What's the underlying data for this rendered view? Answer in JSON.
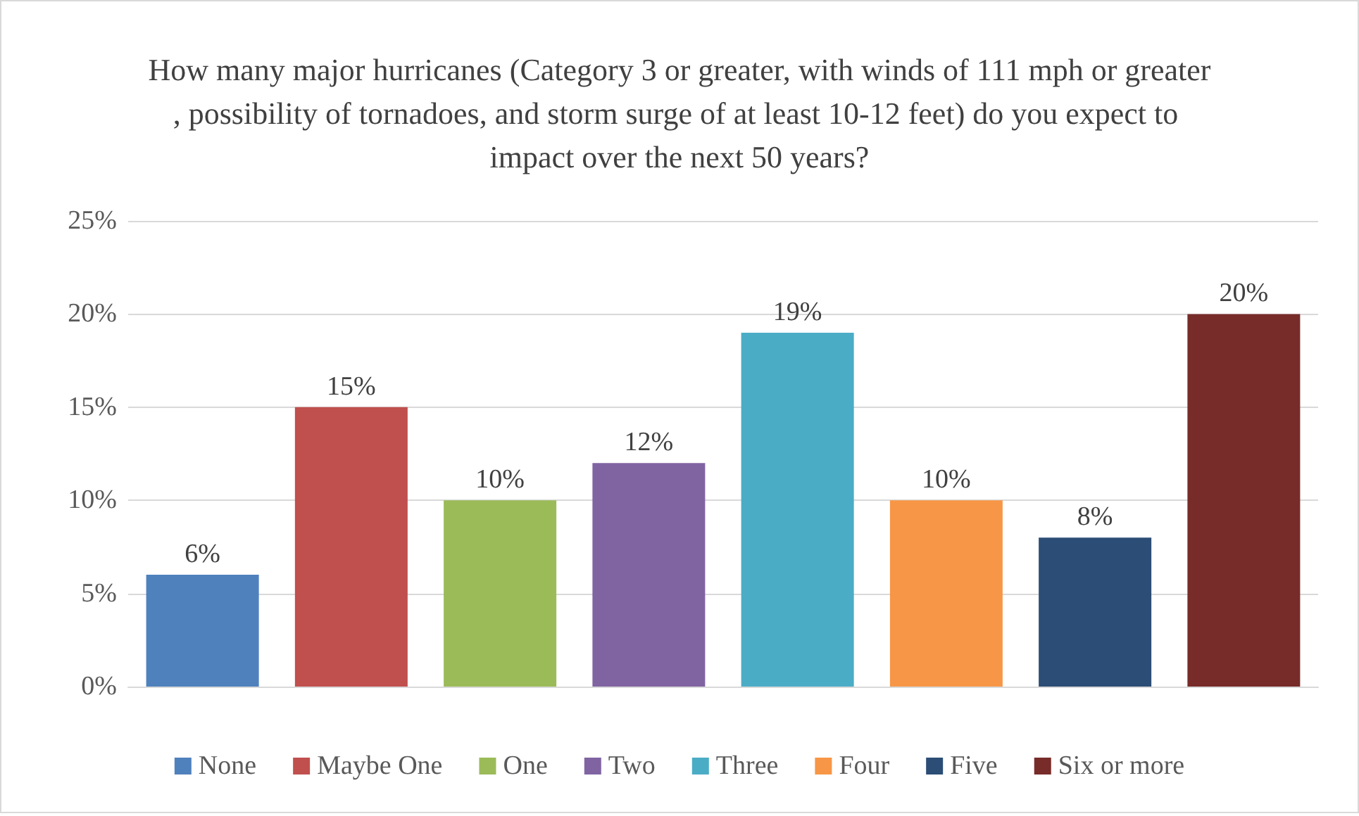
{
  "chart_data": {
    "type": "bar",
    "title": "How many major hurricanes (Category 3 or greater, with winds of 111 mph or greater, possibility of tornadoes, and storm surge of at least 10-12 feet) do you expect to impact over the next 50 years?",
    "categories": [
      null,
      null,
      null,
      null,
      null,
      null,
      null,
      null
    ],
    "series": [
      {
        "name": "None",
        "color": "#4f81bd",
        "values": [
          6,
          null,
          null,
          null,
          null,
          null,
          null,
          null
        ],
        "value_labels": [
          "6%",
          null,
          null,
          null,
          null,
          null,
          null,
          null
        ]
      },
      {
        "name": "Maybe One",
        "color": "#c0504d",
        "values": [
          null,
          15,
          null,
          null,
          null,
          null,
          null,
          null
        ],
        "value_labels": [
          null,
          "15%",
          null,
          null,
          null,
          null,
          null,
          null
        ]
      },
      {
        "name": "One",
        "color": "#9bbb59",
        "values": [
          null,
          null,
          10,
          null,
          null,
          null,
          null,
          null
        ],
        "value_labels": [
          null,
          null,
          "10%",
          null,
          null,
          null,
          null,
          null
        ]
      },
      {
        "name": "Two",
        "color": "#8064a2",
        "values": [
          null,
          null,
          null,
          12,
          null,
          null,
          null,
          null
        ],
        "value_labels": [
          null,
          null,
          null,
          "12%",
          null,
          null,
          null,
          null
        ]
      },
      {
        "name": "Three",
        "color": "#4bacc6",
        "values": [
          null,
          null,
          null,
          null,
          19,
          null,
          null,
          null
        ],
        "value_labels": [
          null,
          null,
          null,
          null,
          "19%",
          null,
          null,
          null
        ]
      },
      {
        "name": "Four",
        "color": "#f79646",
        "values": [
          null,
          null,
          null,
          null,
          null,
          10,
          null,
          null
        ],
        "value_labels": [
          null,
          null,
          null,
          null,
          null,
          "10%",
          null,
          null
        ]
      },
      {
        "name": "Five",
        "color": "#2c4d75",
        "values": [
          null,
          null,
          null,
          null,
          null,
          null,
          8,
          null
        ],
        "value_labels": [
          null,
          null,
          null,
          null,
          null,
          null,
          "8%",
          null
        ]
      },
      {
        "name": "Six or more",
        "color": "#772c2a",
        "values": [
          null,
          null,
          null,
          null,
          null,
          null,
          null,
          20
        ],
        "value_labels": [
          null,
          null,
          null,
          null,
          null,
          null,
          null,
          "20%"
        ]
      }
    ],
    "ylim": [
      0,
      25
    ],
    "yticks": [
      {
        "value": 0,
        "label": "0%"
      },
      {
        "value": 5,
        "label": "5%"
      },
      {
        "value": 10,
        "label": "10%"
      },
      {
        "value": 15,
        "label": "15%"
      },
      {
        "value": 20,
        "label": "20%"
      },
      {
        "value": 25,
        "label": "25%"
      }
    ],
    "grid": "y",
    "legend": "bottom"
  }
}
